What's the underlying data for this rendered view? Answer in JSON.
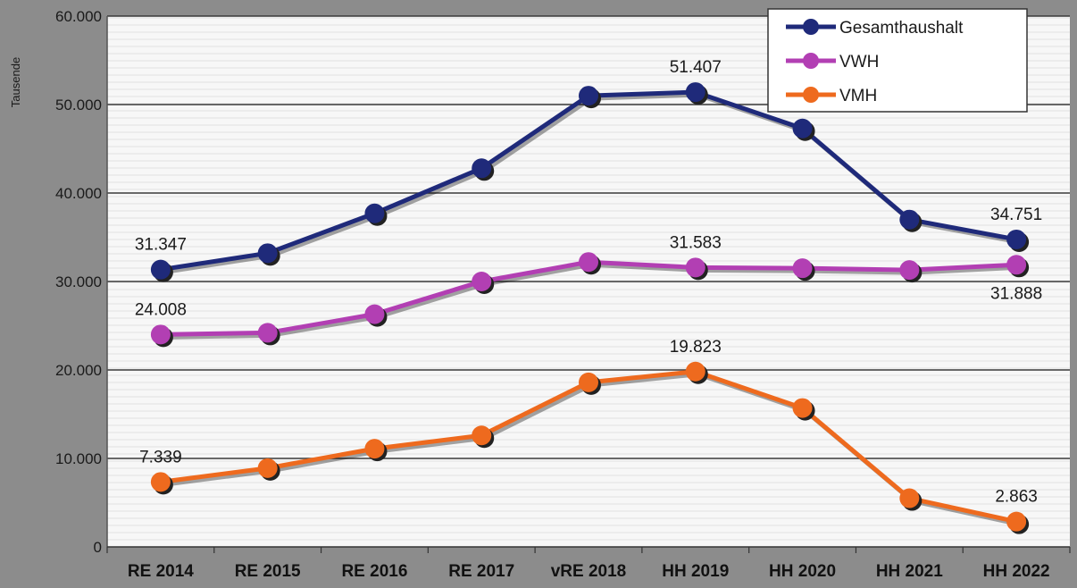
{
  "chart_data": {
    "type": "line",
    "categories": [
      "RE 2014",
      "RE 2015",
      "RE 2016",
      "RE 2017",
      "vRE 2018",
      "HH 2019",
      "HH 2020",
      "HH 2021",
      "HH 2022"
    ],
    "ylabel": "Tausende",
    "ylim": [
      0,
      60000
    ],
    "yticks": [
      0,
      10000,
      20000,
      30000,
      40000,
      50000,
      60000
    ],
    "ytick_labels": [
      "0",
      "10.000",
      "20.000",
      "30.000",
      "40.000",
      "50.000",
      "60.000"
    ],
    "grid": true,
    "legend_position": "top-right",
    "series": [
      {
        "name": "Gesamthaushalt",
        "color": "#1f2a7a",
        "values": [
          31347,
          33200,
          37700,
          42800,
          51000,
          51407,
          47300,
          37000,
          34751
        ],
        "data_labels": [
          {
            "index": 0,
            "text": "31.347",
            "position": "above"
          },
          {
            "index": 5,
            "text": "51.407",
            "position": "above"
          },
          {
            "index": 8,
            "text": "34.751",
            "position": "above"
          }
        ]
      },
      {
        "name": "VWH",
        "color": "#b23fb3",
        "values": [
          24008,
          24200,
          26300,
          30000,
          32200,
          31583,
          31500,
          31300,
          31888
        ],
        "data_labels": [
          {
            "index": 0,
            "text": "24.008",
            "position": "above"
          },
          {
            "index": 5,
            "text": "31.583",
            "position": "above"
          },
          {
            "index": 8,
            "text": "31.888",
            "position": "below"
          }
        ]
      },
      {
        "name": "VMH",
        "color": "#ee6a1e",
        "values": [
          7339,
          8900,
          11100,
          12600,
          18600,
          19823,
          15700,
          5500,
          2863
        ],
        "data_labels": [
          {
            "index": 0,
            "text": "7.339",
            "position": "above"
          },
          {
            "index": 5,
            "text": "19.823",
            "position": "above"
          },
          {
            "index": 8,
            "text": "2.863",
            "position": "above"
          }
        ]
      }
    ]
  }
}
